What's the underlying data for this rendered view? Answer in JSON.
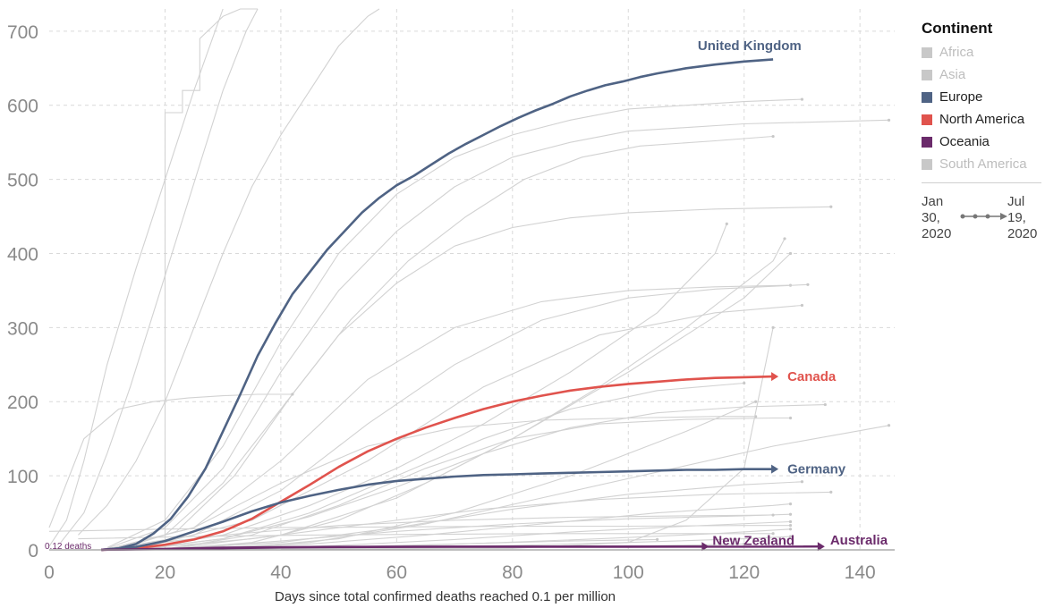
{
  "chart_data": {
    "type": "line",
    "xlabel": "Days since total confirmed deaths reached 0.1 per million",
    "ylabel": "",
    "xlim": [
      0,
      146
    ],
    "ylim": [
      0,
      730
    ],
    "xticks": [
      0,
      20,
      40,
      60,
      80,
      100,
      120,
      140
    ],
    "yticks": [
      0,
      100,
      200,
      300,
      400,
      500,
      600,
      700
    ],
    "grid": true,
    "annotation": "0.12 deaths",
    "legend": {
      "title": "Continent",
      "placement": "right",
      "items": [
        {
          "label": "Africa",
          "color": "#c8c8c8",
          "muted": true
        },
        {
          "label": "Asia",
          "color": "#c8c8c8",
          "muted": true
        },
        {
          "label": "Europe",
          "color": "#4f6384",
          "muted": false
        },
        {
          "label": "North America",
          "color": "#e0534d",
          "muted": false
        },
        {
          "label": "Oceania",
          "color": "#6b2b6b",
          "muted": false
        },
        {
          "label": "South America",
          "color": "#c8c8c8",
          "muted": true
        }
      ]
    },
    "time_range": {
      "start": "Jan 30, 2020",
      "end": "Jul 19, 2020"
    },
    "highlighted_series": [
      {
        "name": "United Kingdom",
        "color": "#4f6384",
        "x": [
          9,
          12,
          15,
          18,
          21,
          24,
          27,
          30,
          33,
          36,
          39,
          42,
          45,
          48,
          51,
          54,
          57,
          60,
          63,
          66,
          69,
          72,
          75,
          78,
          81,
          84,
          87,
          90,
          93,
          96,
          99,
          102,
          105,
          110,
          115,
          120,
          125
        ],
        "y": [
          0.12,
          2,
          8,
          22,
          42,
          72,
          110,
          160,
          210,
          262,
          305,
          345,
          375,
          405,
          430,
          455,
          475,
          492,
          505,
          520,
          535,
          548,
          560,
          572,
          583,
          593,
          602,
          612,
          620,
          627,
          632,
          638,
          643,
          650,
          655,
          659,
          662
        ]
      },
      {
        "name": "Canada",
        "color": "#e0534d",
        "x": [
          9,
          15,
          20,
          25,
          30,
          35,
          40,
          45,
          50,
          55,
          60,
          65,
          70,
          75,
          80,
          85,
          90,
          95,
          100,
          105,
          110,
          115,
          120,
          125
        ],
        "y": [
          0.12,
          2,
          7,
          14,
          25,
          42,
          65,
          88,
          112,
          133,
          150,
          165,
          178,
          190,
          200,
          208,
          215,
          220,
          224,
          227,
          230,
          232,
          233,
          234
        ]
      },
      {
        "name": "Germany",
        "color": "#4f6384",
        "x": [
          9,
          15,
          20,
          25,
          30,
          35,
          40,
          45,
          50,
          55,
          60,
          65,
          70,
          75,
          80,
          85,
          90,
          95,
          100,
          105,
          110,
          115,
          120,
          125
        ],
        "y": [
          0.12,
          4,
          12,
          25,
          38,
          52,
          64,
          73,
          81,
          88,
          93,
          96,
          99,
          101,
          102,
          103,
          104,
          105,
          106,
          107,
          108,
          108,
          109,
          109
        ]
      },
      {
        "name": "New Zealand",
        "color": "#6b2b6b",
        "x": [
          9,
          20,
          30,
          40,
          50,
          60,
          70,
          80,
          90,
          100,
          110,
          113
        ],
        "y": [
          0.12,
          1.5,
          3,
          3.8,
          4.1,
          4.4,
          4.5,
          4.5,
          4.5,
          4.5,
          4.5,
          4.5
        ]
      },
      {
        "name": "Australia",
        "color": "#6b2b6b",
        "x": [
          9,
          20,
          30,
          40,
          50,
          60,
          70,
          80,
          90,
          100,
          110,
          120,
          130,
          133
        ],
        "y": [
          0.12,
          1,
          2,
          3.2,
          3.8,
          4,
          4.1,
          4.1,
          4.2,
          4.2,
          4.3,
          4.4,
          4.5,
          4.6
        ]
      }
    ],
    "background_series": [
      {
        "x": [
          0,
          3,
          6,
          10,
          15,
          20,
          25,
          30
        ],
        "y": [
          5,
          40,
          120,
          250,
          380,
          500,
          620,
          760
        ]
      },
      {
        "x": [
          2,
          6,
          10,
          14,
          18,
          22,
          26,
          30,
          34,
          36
        ],
        "y": [
          10,
          50,
          130,
          220,
          320,
          420,
          520,
          620,
          700,
          750
        ]
      },
      {
        "x": [
          20,
          20,
          23,
          23,
          26,
          26,
          30,
          33,
          36
        ],
        "y": [
          10,
          590,
          590,
          620,
          620,
          690,
          720,
          740,
          760
        ]
      },
      {
        "x": [
          5,
          10,
          15,
          20,
          25,
          30,
          35,
          40,
          45,
          50,
          55,
          57
        ],
        "y": [
          20,
          60,
          120,
          200,
          300,
          400,
          490,
          560,
          620,
          680,
          720,
          760
        ]
      },
      {
        "x": [
          10,
          20,
          30,
          40,
          50,
          60,
          70,
          80,
          90,
          100,
          120,
          130
        ],
        "y": [
          3,
          40,
          140,
          280,
          400,
          480,
          530,
          560,
          580,
          595,
          605,
          608
        ]
      },
      {
        "x": [
          10,
          20,
          30,
          40,
          50,
          60,
          70,
          80,
          90,
          100,
          120,
          145
        ],
        "y": [
          2,
          30,
          110,
          240,
          350,
          430,
          490,
          530,
          550,
          565,
          575,
          580
        ]
      },
      {
        "x": [
          12,
          22,
          32,
          42,
          52,
          62,
          72,
          82,
          92,
          102,
          115,
          125
        ],
        "y": [
          1,
          25,
          100,
          210,
          310,
          390,
          450,
          500,
          530,
          545,
          552,
          558
        ]
      },
      {
        "x": [
          10,
          20,
          30,
          40,
          50,
          60,
          70,
          80,
          90,
          100,
          115,
          135
        ],
        "y": [
          1,
          20,
          90,
          190,
          290,
          360,
          410,
          435,
          448,
          455,
          460,
          463
        ]
      },
      {
        "x": [
          15,
          30,
          45,
          60,
          75,
          90,
          105,
          115,
          117
        ],
        "y": [
          1,
          20,
          60,
          110,
          170,
          240,
          320,
          400,
          440
        ]
      },
      {
        "x": [
          10,
          25,
          40,
          55,
          70,
          85,
          100,
          115,
          128
        ],
        "y": [
          1,
          30,
          120,
          230,
          300,
          335,
          350,
          355,
          357
        ]
      },
      {
        "x": [
          10,
          25,
          40,
          55,
          70,
          85,
          100,
          115,
          131
        ],
        "y": [
          1,
          20,
          80,
          170,
          250,
          310,
          340,
          352,
          358
        ]
      },
      {
        "x": [
          20,
          35,
          50,
          65,
          80,
          95,
          110,
          125,
          127
        ],
        "y": [
          1,
          10,
          40,
          90,
          150,
          220,
          300,
          390,
          420
        ]
      },
      {
        "x": [
          20,
          40,
          60,
          80,
          100,
          120,
          128
        ],
        "y": [
          1,
          20,
          70,
          150,
          240,
          340,
          400
        ]
      },
      {
        "x": [
          25,
          45,
          65,
          85,
          105,
          125,
          145
        ],
        "y": [
          1,
          10,
          35,
          70,
          105,
          140,
          168
        ]
      },
      {
        "x": [
          15,
          30,
          45,
          60,
          75,
          90,
          105,
          120,
          134
        ],
        "y": [
          1,
          15,
          45,
          85,
          130,
          165,
          185,
          193,
          196
        ]
      },
      {
        "x": [
          20,
          35,
          50,
          65,
          80,
          95,
          110,
          125,
          128
        ],
        "y": [
          1,
          20,
          60,
          110,
          150,
          170,
          176,
          178,
          178
        ]
      },
      {
        "x": [
          10,
          25,
          40,
          55,
          70,
          85,
          100,
          115,
          122
        ],
        "y": [
          1,
          30,
          90,
          140,
          165,
          175,
          178,
          180,
          180
        ]
      },
      {
        "x": [
          15,
          30,
          45,
          60,
          75,
          90,
          105,
          120
        ],
        "y": [
          1,
          15,
          50,
          100,
          150,
          190,
          215,
          225
        ]
      },
      {
        "x": [
          30,
          50,
          70,
          90,
          110,
          122
        ],
        "y": [
          1,
          15,
          50,
          100,
          160,
          200
        ]
      },
      {
        "x": [
          20,
          40,
          60,
          80,
          100,
          120,
          130
        ],
        "y": [
          1,
          10,
          30,
          55,
          75,
          88,
          92
        ]
      },
      {
        "x": [
          15,
          35,
          55,
          75,
          95,
          115,
          135
        ],
        "y": [
          1,
          15,
          35,
          55,
          68,
          75,
          78
        ]
      },
      {
        "x": [
          25,
          45,
          65,
          85,
          105,
          125,
          128
        ],
        "y": [
          1,
          8,
          20,
          35,
          50,
          60,
          62
        ]
      },
      {
        "x": [
          20,
          40,
          60,
          80,
          100,
          120,
          128
        ],
        "y": [
          1,
          12,
          25,
          35,
          42,
          46,
          48
        ]
      },
      {
        "x": [
          10,
          30,
          50,
          70,
          90,
          110,
          125
        ],
        "y": [
          1,
          20,
          33,
          40,
          44,
          46,
          47
        ]
      },
      {
        "x": [
          30,
          50,
          70,
          90,
          110,
          128
        ],
        "y": [
          1,
          6,
          14,
          24,
          32,
          38
        ]
      },
      {
        "x": [
          35,
          55,
          75,
          95,
          115,
          128
        ],
        "y": [
          1,
          4,
          9,
          15,
          22,
          28
        ]
      },
      {
        "x": [
          40,
          60,
          80,
          100,
          120,
          128
        ],
        "y": [
          1,
          3,
          6,
          10,
          15,
          18
        ]
      },
      {
        "x": [
          0,
          20,
          40,
          60,
          80,
          100,
          120,
          128
        ],
        "y": [
          25,
          28,
          30,
          31,
          32,
          32,
          33,
          33
        ]
      },
      {
        "x": [
          5,
          25,
          45,
          65,
          85,
          105,
          125
        ],
        "y": [
          15,
          18,
          20,
          21,
          22,
          22,
          22
        ]
      },
      {
        "x": [
          30,
          40,
          50,
          60,
          70,
          80,
          90,
          105
        ],
        "y": [
          0.5,
          2,
          4,
          6,
          8,
          10,
          12,
          14
        ]
      },
      {
        "x": [
          40,
          50,
          60,
          80,
          100,
          120
        ],
        "y": [
          0.5,
          1,
          2,
          3,
          5,
          8
        ]
      },
      {
        "x": [
          0,
          6,
          12,
          18,
          24,
          30,
          36,
          42
        ],
        "y": [
          30,
          150,
          190,
          200,
          205,
          208,
          210,
          210
        ]
      },
      {
        "x": [
          40,
          80,
          100,
          110,
          120,
          125
        ],
        "y": [
          0.5,
          2,
          10,
          40,
          110,
          300
        ]
      },
      {
        "x": [
          15,
          35,
          55,
          75,
          95,
          115,
          130
        ],
        "y": [
          1,
          40,
          120,
          220,
          290,
          320,
          330
        ]
      }
    ]
  }
}
